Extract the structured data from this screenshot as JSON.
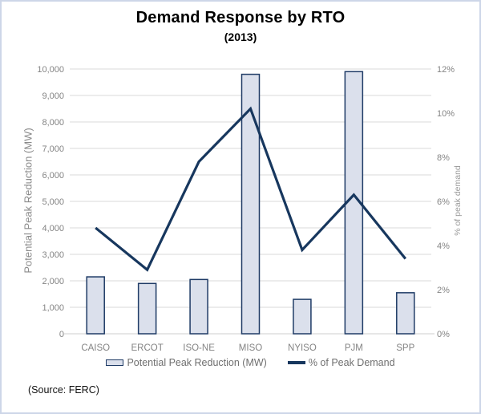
{
  "page": {
    "title": "Demand Response by RTO",
    "subtitle": "(2013)",
    "source_note": "(Source: FERC)"
  },
  "colors": {
    "frame_border": "#cdd6e8",
    "bar_fill": "#dbe0ec",
    "bar_stroke": "#1f3b66",
    "line": "#17375e",
    "grid": "#d9d9d9",
    "axis_line": "#cfcfcf",
    "tick_text": "#848484"
  },
  "chart_data": {
    "type": "combo-bar-line",
    "title": "Demand Response by RTO",
    "subtitle": "(2013)",
    "categories": [
      "CAISO",
      "ERCOT",
      "ISO-NE",
      "MISO",
      "NYISO",
      "PJM",
      "SPP"
    ],
    "series": [
      {
        "name": "Potential Peak Reduction (MW)",
        "type": "bar",
        "axis": "left",
        "values": [
          2150,
          1900,
          2050,
          9800,
          1300,
          9900,
          1550
        ]
      },
      {
        "name": "% of Peak Demand",
        "type": "line",
        "axis": "right",
        "values": [
          4.8,
          2.9,
          7.8,
          10.2,
          3.8,
          6.3,
          3.4
        ]
      }
    ],
    "left_axis": {
      "title": "Potential Peak Reduction (MW)",
      "min": 0,
      "max": 10000,
      "grid_step": 1000,
      "tick_labels": [
        "0",
        "1,000",
        "2,000",
        "3,000",
        "4,000",
        "5,000",
        "6,000",
        "7,000",
        "8,000",
        "9,000",
        "10,000"
      ]
    },
    "right_axis": {
      "title": "% of peak demand",
      "min": 0,
      "max": 12,
      "label_step": 2,
      "tick_labels": [
        "0%",
        "2%",
        "4%",
        "6%",
        "8%",
        "10%",
        "12%"
      ]
    },
    "legend": [
      {
        "label": "Potential Peak Reduction (MW)",
        "marker": "bar-swatch"
      },
      {
        "label": "% of Peak Demand",
        "marker": "line-swatch"
      }
    ],
    "grid": true,
    "legend_position": "bottom",
    "source": "(Source: FERC)"
  }
}
